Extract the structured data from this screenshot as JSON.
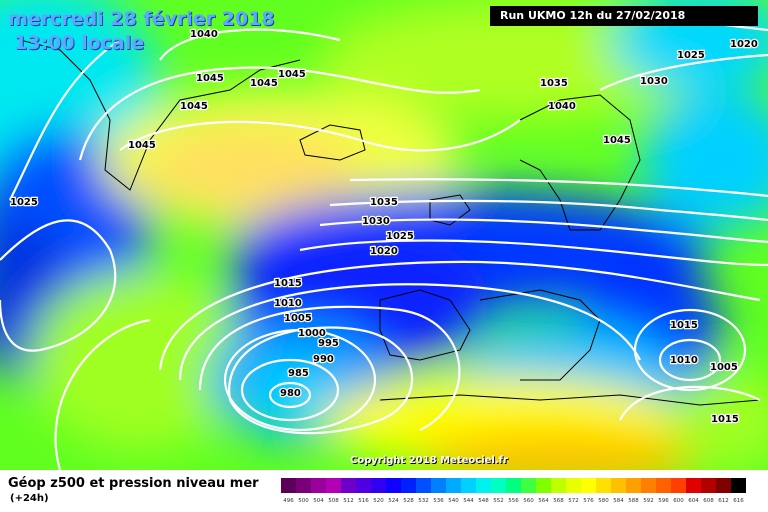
{
  "header": {
    "date_label": "mercredi 28 février 2018",
    "time_label": "13:00 locale",
    "run_label": "Run UKMO 12h du 27/02/2018"
  },
  "copyright": "Copyright 2018 Meteociel.fr",
  "footer": {
    "title": "Géop z500 et pression niveau mer",
    "subtitle": "(+24h)"
  },
  "isobar_labels": [
    {
      "text": "1040"
    },
    {
      "text": "1045"
    },
    {
      "text": "1045"
    },
    {
      "text": "1045"
    },
    {
      "text": "1045"
    },
    {
      "text": "1045"
    },
    {
      "text": "1025"
    },
    {
      "text": "1035"
    },
    {
      "text": "1040"
    },
    {
      "text": "1045"
    },
    {
      "text": "1030"
    },
    {
      "text": "1025"
    },
    {
      "text": "1020"
    },
    {
      "text": "1035"
    },
    {
      "text": "1030"
    },
    {
      "text": "1025"
    },
    {
      "text": "1020"
    },
    {
      "text": "1015"
    },
    {
      "text": "1010"
    },
    {
      "text": "1005"
    },
    {
      "text": "1000"
    },
    {
      "text": "995"
    },
    {
      "text": "990"
    },
    {
      "text": "985"
    },
    {
      "text": "980"
    },
    {
      "text": "1015"
    },
    {
      "text": "1010"
    },
    {
      "text": "1005"
    },
    {
      "text": "1015"
    }
  ],
  "scale": {
    "ticks": [
      "496",
      "500",
      "504",
      "508",
      "512",
      "516",
      "520",
      "524",
      "528",
      "532",
      "536",
      "540",
      "544",
      "548",
      "552",
      "556",
      "560",
      "564",
      "568",
      "572",
      "576",
      "580",
      "584",
      "588",
      "592",
      "596",
      "600",
      "604",
      "608",
      "612",
      "616"
    ],
    "colors": [
      "#5a005a",
      "#7a007a",
      "#9a009a",
      "#b400b4",
      "#6c00c8",
      "#5000e0",
      "#3000f0",
      "#1000ff",
      "#0020ff",
      "#0050ff",
      "#0080ff",
      "#00aaff",
      "#00d0ff",
      "#00f0f0",
      "#00ffc0",
      "#00ff80",
      "#40ff40",
      "#80ff00",
      "#c0ff00",
      "#e8ff00",
      "#ffff00",
      "#ffe000",
      "#ffc000",
      "#ffa000",
      "#ff8000",
      "#ff6000",
      "#ff4000",
      "#e00000",
      "#b00000",
      "#800000",
      "#000000"
    ]
  }
}
